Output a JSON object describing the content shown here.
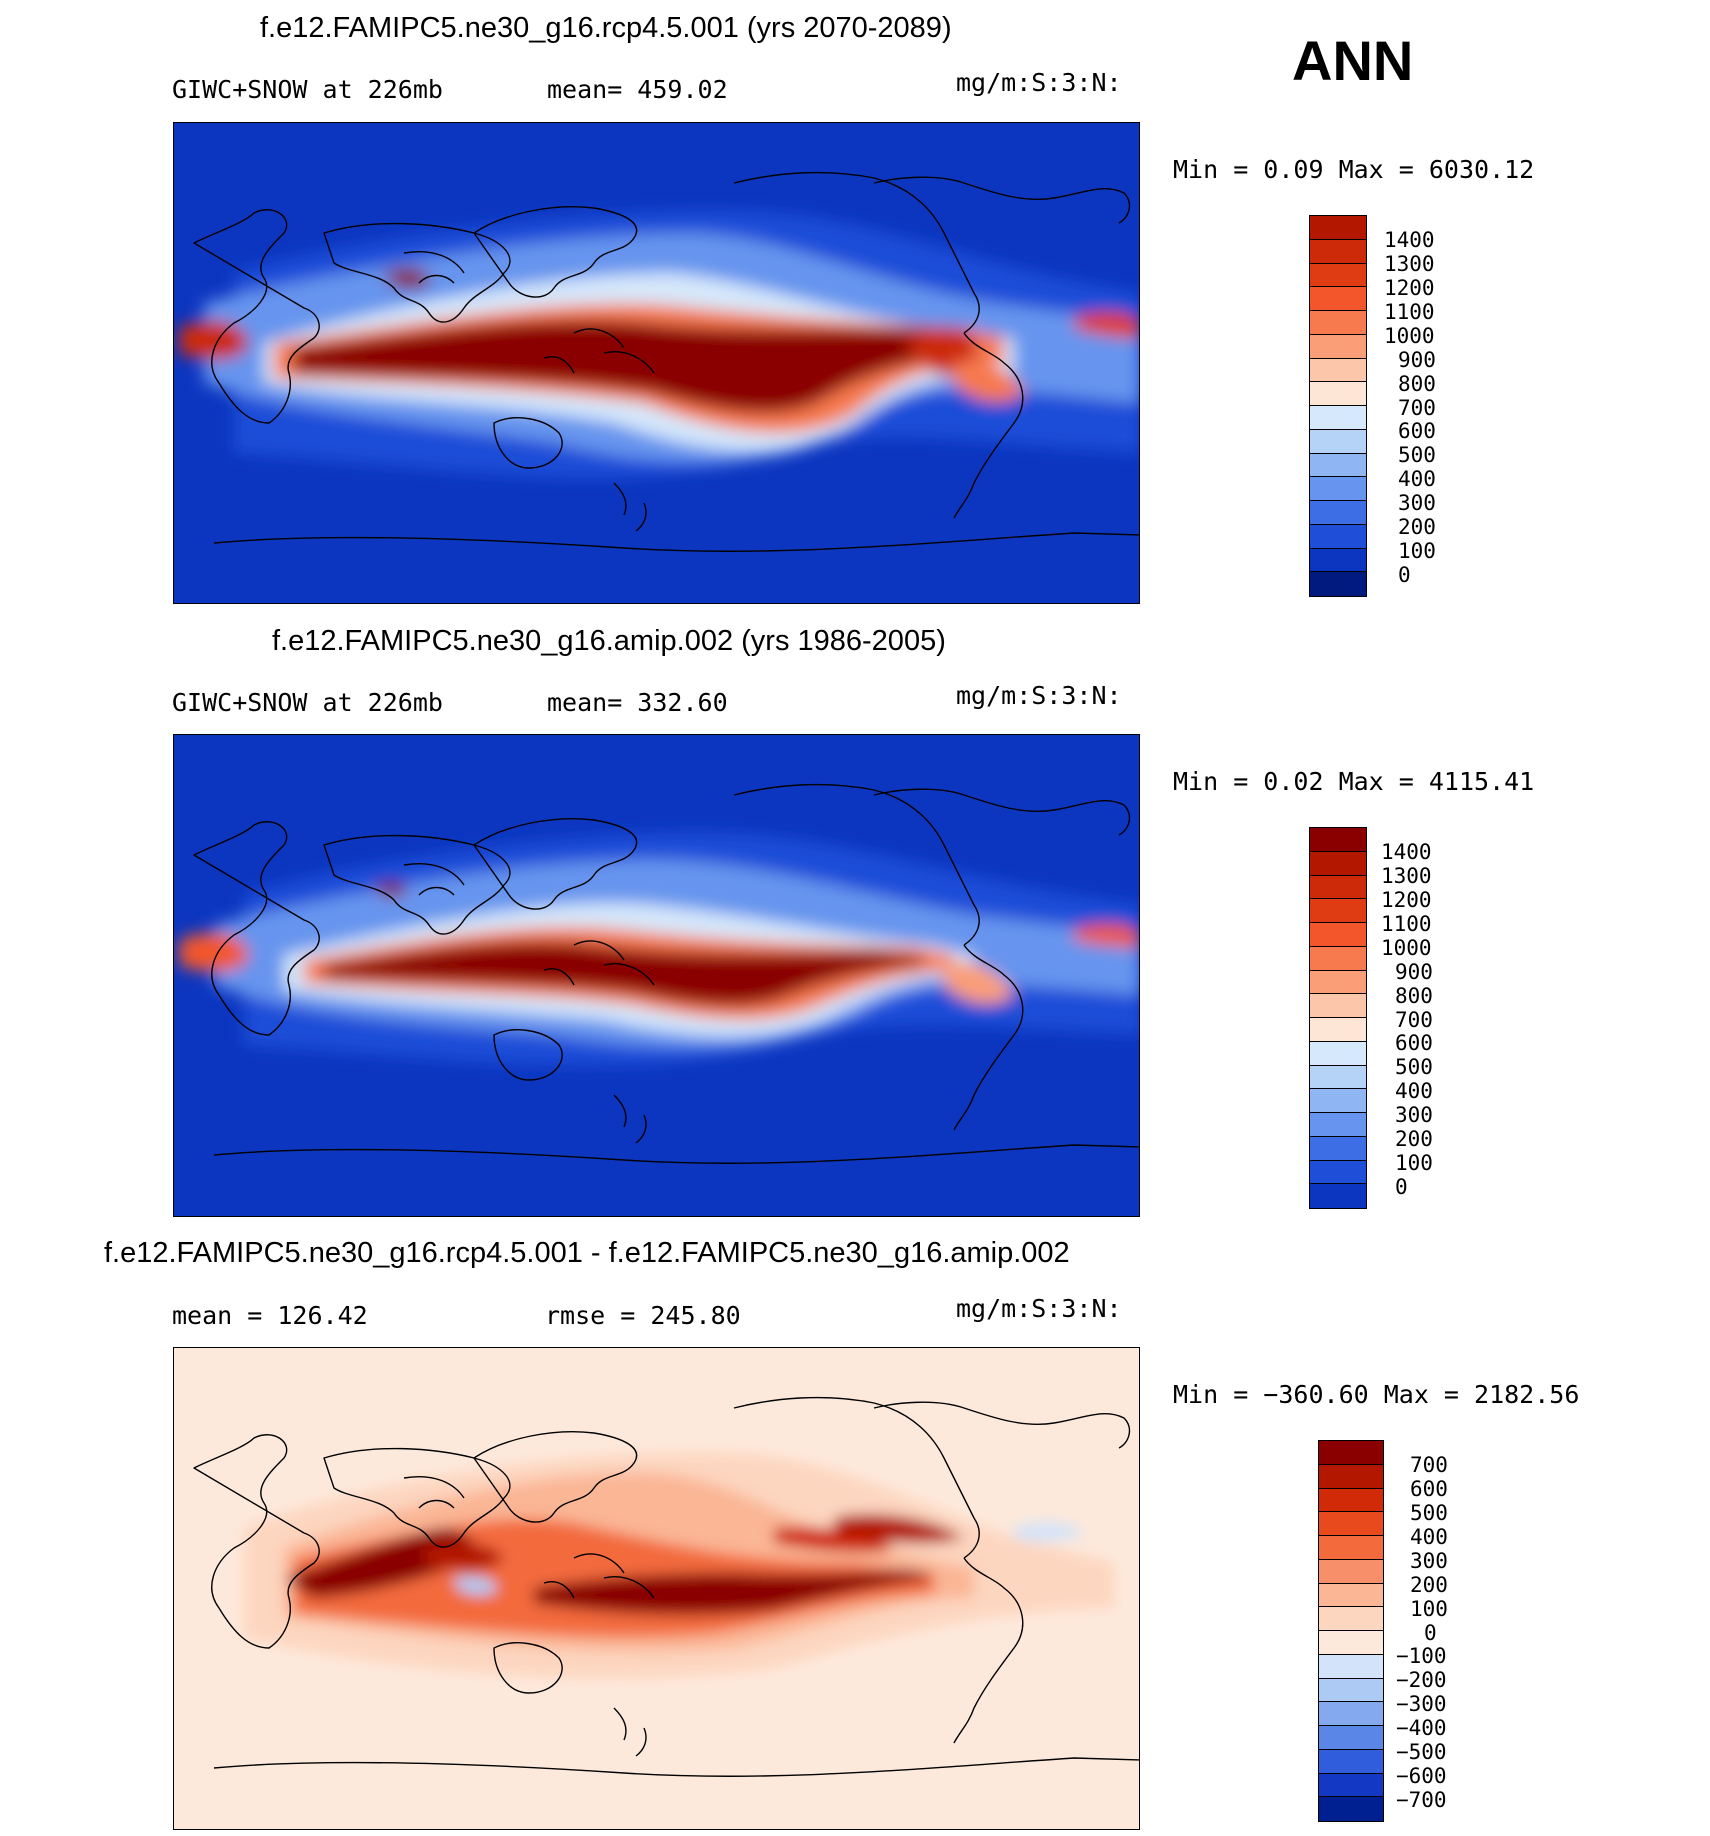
{
  "season": "ANN",
  "panels": [
    {
      "title": "f.e12.FAMIPC5.ne30_g16.rcp4.5.001 (yrs 2070-2089)",
      "left_text": "GIWC+SNOW at 226mb",
      "mid_text": "mean= 459.02",
      "units": "mg/m:S:3:N:",
      "minmax": "Min =    0.09 Max = 6030.12",
      "colorbar": {
        "labels": [
          "1400",
          "1300",
          "1200",
          "1100",
          "1000",
          "900",
          "800",
          "700",
          "600",
          "500",
          "400",
          "300",
          "200",
          "100",
          "0"
        ],
        "colors": [
          "#b31700",
          "#cc2a08",
          "#e03c14",
          "#f2562a",
          "#f7794e",
          "#fa9e78",
          "#fcc6aa",
          "#fde6d6",
          "#d6e8fb",
          "#b5d3f7",
          "#8fb5f2",
          "#6694ee",
          "#3d6ee6",
          "#1f4ed8",
          "#0c36c0",
          "#001a80"
        ]
      }
    },
    {
      "title": "f.e12.FAMIPC5.ne30_g16.amip.002 (yrs 1986-2005)",
      "left_text": "GIWC+SNOW at 226mb",
      "mid_text": "mean= 332.60",
      "units": "mg/m:S:3:N:",
      "minmax": "Min =    0.02 Max = 4115.41",
      "colorbar": {
        "labels": [
          "1400",
          "1300",
          "1200",
          "1100",
          "1000",
          "900",
          "800",
          "700",
          "600",
          "500",
          "400",
          "300",
          "200",
          "100",
          "0"
        ],
        "colors": [
          "#8a0000",
          "#b31700",
          "#cc2a08",
          "#e03c14",
          "#f2562a",
          "#f7794e",
          "#fa9e78",
          "#fcc6aa",
          "#fde6d6",
          "#d6e8fb",
          "#b5d3f7",
          "#8fb5f2",
          "#6694ee",
          "#3d6ee6",
          "#1f4ed8",
          "#0c36c0"
        ]
      }
    },
    {
      "title": "f.e12.FAMIPC5.ne30_g16.rcp4.5.001 - f.e12.FAMIPC5.ne30_g16.amip.002",
      "left_text": "mean = 126.42",
      "mid_text": "rmse = 245.80",
      "units": "mg/m:S:3:N:",
      "minmax": "Min = −360.60 Max = 2182.56",
      "colorbar": {
        "labels": [
          "700",
          "600",
          "500",
          "400",
          "300",
          "200",
          "100",
          "0",
          "−100",
          "−200",
          "−300",
          "−400",
          "−500",
          "−600",
          "−700"
        ],
        "colors": [
          "#8a0000",
          "#b31700",
          "#d02a08",
          "#e84a1e",
          "#f36b3d",
          "#f7906a",
          "#fab695",
          "#fdd6c0",
          "#fde9db",
          "#d2e3fa",
          "#adcaf5",
          "#84a9ef",
          "#5a86e8",
          "#2f5ddc",
          "#1238c4",
          "#001f90"
        ]
      }
    }
  ]
}
